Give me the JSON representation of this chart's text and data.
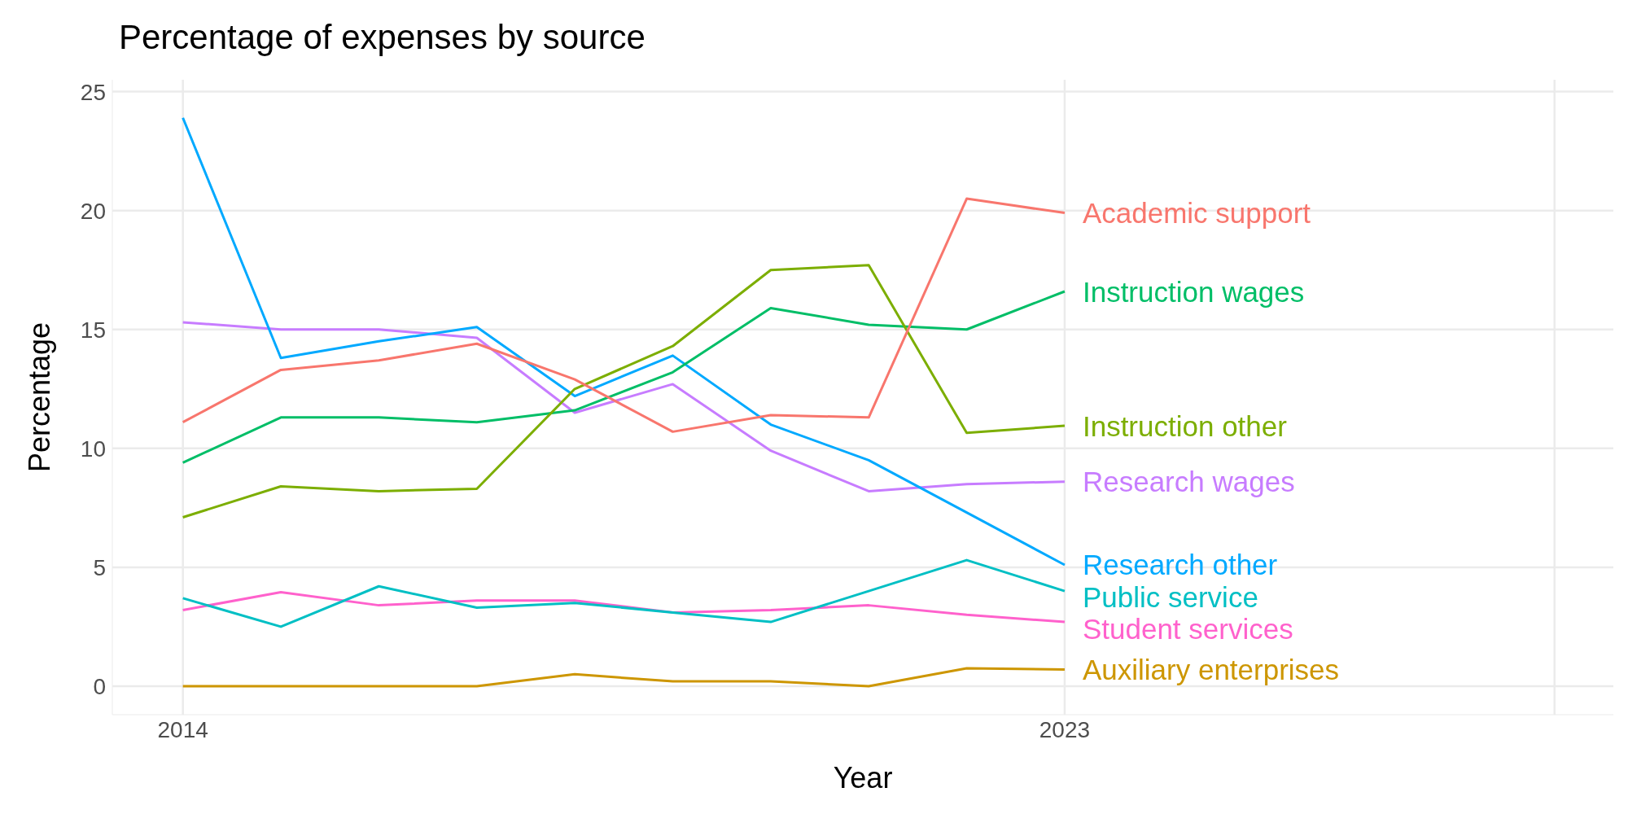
{
  "chart_data": {
    "type": "line",
    "title": "Percentage of expenses by source",
    "xlabel": "Year",
    "ylabel": "Percentage",
    "x": [
      2014,
      2015,
      2016,
      2017,
      2018,
      2019,
      2020,
      2021,
      2022,
      2023
    ],
    "xlim": [
      2013.28,
      2028.6
    ],
    "xticks": [
      2014,
      2023,
      {
        "value": 2028,
        "label": null
      }
    ],
    "ylim": [
      -1.2,
      25.5
    ],
    "yticks": [
      0,
      5,
      10,
      15,
      20,
      25
    ],
    "grid": true,
    "legend": false,
    "marker": "none",
    "line_style": "solid",
    "series": [
      {
        "name": "Academic support",
        "color": "#f8766d",
        "values": [
          11.1,
          13.3,
          13.7,
          14.4,
          12.9,
          10.7,
          11.4,
          11.3,
          20.5,
          19.9
        ]
      },
      {
        "name": "Auxiliary enterprises",
        "color": "#cd9600",
        "values": [
          0,
          0,
          0,
          0,
          0.5,
          0.2,
          0.2,
          0,
          0.75,
          0.7
        ]
      },
      {
        "name": "Instruction other",
        "color": "#7cae00",
        "values": [
          7.1,
          8.4,
          8.2,
          8.3,
          12.5,
          14.3,
          17.5,
          17.7,
          10.65,
          10.95
        ]
      },
      {
        "name": "Instruction wages",
        "color": "#00be67",
        "values": [
          9.4,
          11.3,
          11.3,
          11.1,
          11.6,
          13.2,
          15.9,
          15.2,
          15.0,
          16.6
        ]
      },
      {
        "name": "Public service",
        "color": "#00bfc4",
        "values": [
          3.7,
          2.5,
          4.2,
          3.3,
          3.5,
          3.1,
          2.7,
          4.0,
          5.3,
          4.0
        ]
      },
      {
        "name": "Research other",
        "color": "#00a9ff",
        "values": [
          23.9,
          13.8,
          14.5,
          15.1,
          12.2,
          13.9,
          11.0,
          9.5,
          7.3,
          5.1
        ]
      },
      {
        "name": "Research wages",
        "color": "#c77cff",
        "values": [
          15.3,
          15.0,
          15.0,
          14.65,
          11.5,
          12.7,
          9.9,
          8.2,
          8.5,
          8.6
        ]
      },
      {
        "name": "Student services",
        "color": "#ff61cc",
        "values": [
          3.2,
          3.95,
          3.4,
          3.6,
          3.6,
          3.1,
          3.2,
          3.4,
          3.0,
          2.7
        ]
      }
    ]
  }
}
